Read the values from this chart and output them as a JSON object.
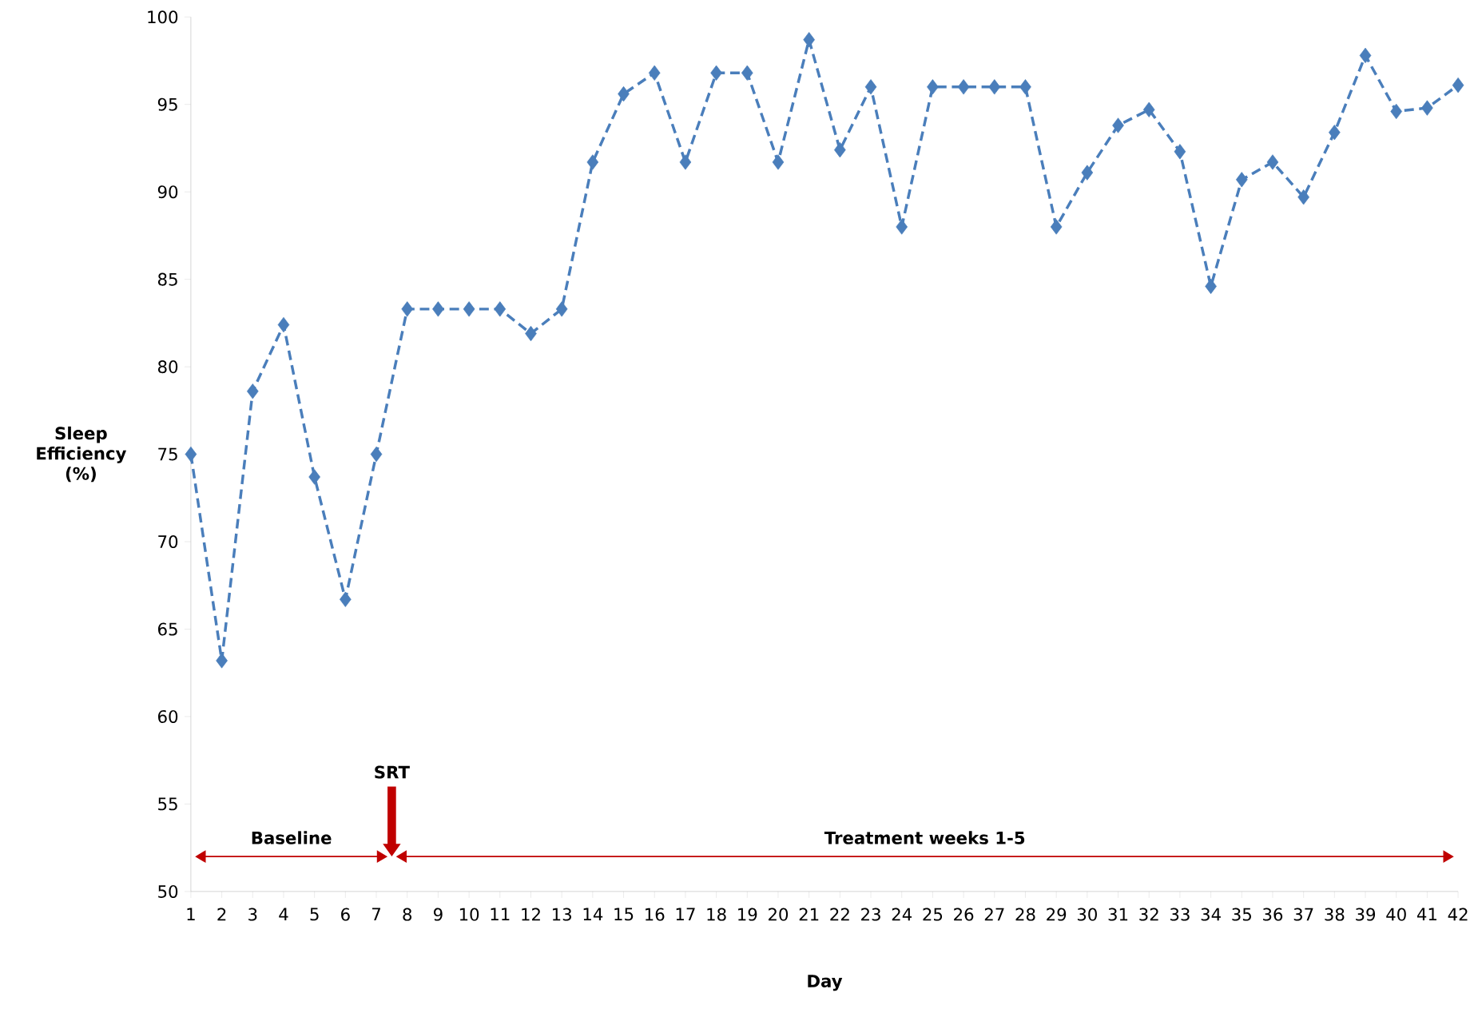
{
  "chart_data": {
    "type": "line",
    "xlabel": "Day",
    "ylabel": "Sleep Efficiency (%)",
    "x": [
      1,
      2,
      3,
      4,
      5,
      6,
      7,
      8,
      9,
      10,
      11,
      12,
      13,
      14,
      15,
      16,
      17,
      18,
      19,
      20,
      21,
      22,
      23,
      24,
      25,
      26,
      27,
      28,
      29,
      30,
      31,
      32,
      33,
      34,
      35,
      36,
      37,
      38,
      39,
      40,
      41,
      42
    ],
    "series": [
      {
        "color": "#4a7ebb",
        "values": [
          75,
          63.2,
          78.6,
          82.4,
          73.7,
          66.7,
          75,
          83.3,
          83.3,
          83.3,
          83.3,
          81.9,
          83.3,
          91.7,
          95.6,
          96.8,
          91.7,
          96.8,
          96.8,
          91.7,
          98.7,
          92.4,
          96.0,
          88.0,
          96.0,
          96.0,
          96.0,
          96.0,
          88.0,
          91.1,
          93.8,
          94.7,
          92.3,
          84.6,
          90.7,
          91.7,
          89.7,
          93.4,
          97.8,
          94.6,
          94.8,
          96.1
        ]
      }
    ],
    "marker": "diamond",
    "line_style": "dashed",
    "grid": false,
    "xlim": [
      1,
      42
    ],
    "xticks": [
      1,
      2,
      3,
      4,
      5,
      6,
      7,
      8,
      9,
      10,
      11,
      12,
      13,
      14,
      15,
      16,
      17,
      18,
      19,
      20,
      21,
      22,
      23,
      24,
      25,
      26,
      27,
      28,
      29,
      30,
      31,
      32,
      33,
      34,
      35,
      36,
      37,
      38,
      39,
      40,
      41,
      42
    ],
    "ylim": [
      50,
      100
    ],
    "yticks": [
      50,
      55,
      60,
      65,
      70,
      75,
      80,
      85,
      90,
      95,
      100
    ],
    "ref_lines": [
      {
        "axis": "x",
        "value": 7.5,
        "label": "SRT",
        "color": "#c00000"
      }
    ],
    "annotations": [
      "Baseline",
      "Treatment weeks 1-5"
    ]
  }
}
